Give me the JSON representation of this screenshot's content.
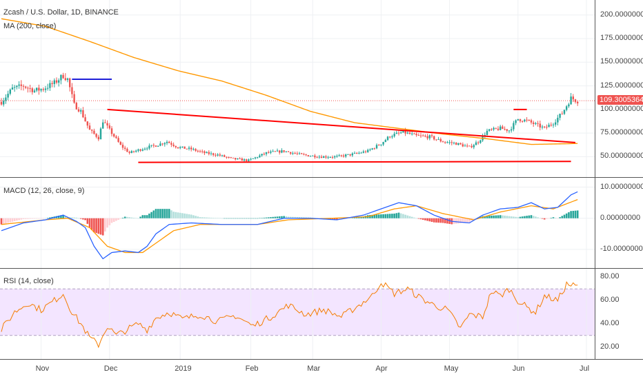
{
  "header": {
    "symbol_line": "Zcash / U.S. Dollar, 1D, BINANCE",
    "ma_label": "MA (200, close)",
    "macd_label": "MACD (12, 26, close, 9)",
    "rsi_label": "RSI (14, close)"
  },
  "colors": {
    "up": "#26a69a",
    "down": "#ef5350",
    "ma": "#ff9800",
    "macd": "#2962ff",
    "signal": "#ff9800",
    "rsi": "#f57c00",
    "rsi_band": "#f3e5ff",
    "trendline": "#ff0000",
    "blue_level": "#1e1ed8"
  },
  "price_tag": "109.30053640",
  "chart_data": [
    {
      "type": "candlestick",
      "pane": "price",
      "title": "Zcash / U.S. Dollar, 1D, BINANCE",
      "x_ticks": [
        "Nov",
        "Dec",
        "2019",
        "Feb",
        "Mar",
        "Apr",
        "May",
        "Jun",
        "Jul"
      ],
      "y_ticks": [
        "200.00000000",
        "175.00000000",
        "150.00000000",
        "125.00000000",
        "100.00000000",
        "75.00000000",
        "50.00000000"
      ],
      "ylim": [
        35,
        210
      ],
      "last_price": 109.3,
      "ma_label": "MA (200, close)",
      "close_keypoints": [
        {
          "day": 0,
          "value": 108
        },
        {
          "day": 5,
          "value": 122
        },
        {
          "day": 10,
          "value": 125
        },
        {
          "day": 15,
          "value": 120
        },
        {
          "day": 19,
          "value": 122
        },
        {
          "day": 24,
          "value": 128
        },
        {
          "day": 28,
          "value": 136
        },
        {
          "day": 30,
          "value": 132
        },
        {
          "day": 33,
          "value": 105
        },
        {
          "day": 36,
          "value": 98
        },
        {
          "day": 40,
          "value": 78
        },
        {
          "day": 44,
          "value": 70
        },
        {
          "day": 46,
          "value": 88
        },
        {
          "day": 50,
          "value": 75
        },
        {
          "day": 54,
          "value": 62
        },
        {
          "day": 58,
          "value": 54
        },
        {
          "day": 62,
          "value": 57
        },
        {
          "day": 66,
          "value": 60
        },
        {
          "day": 70,
          "value": 62
        },
        {
          "day": 75,
          "value": 66
        },
        {
          "day": 80,
          "value": 60
        },
        {
          "day": 86,
          "value": 58
        },
        {
          "day": 92,
          "value": 54
        },
        {
          "day": 98,
          "value": 52
        },
        {
          "day": 104,
          "value": 48
        },
        {
          "day": 112,
          "value": 46
        },
        {
          "day": 120,
          "value": 54
        },
        {
          "day": 128,
          "value": 56
        },
        {
          "day": 136,
          "value": 52
        },
        {
          "day": 145,
          "value": 50
        },
        {
          "day": 152,
          "value": 50
        },
        {
          "day": 160,
          "value": 53
        },
        {
          "day": 166,
          "value": 56
        },
        {
          "day": 172,
          "value": 64
        },
        {
          "day": 176,
          "value": 72
        },
        {
          "day": 182,
          "value": 76
        },
        {
          "day": 188,
          "value": 72
        },
        {
          "day": 194,
          "value": 71
        },
        {
          "day": 200,
          "value": 66
        },
        {
          "day": 206,
          "value": 64
        },
        {
          "day": 212,
          "value": 60
        },
        {
          "day": 216,
          "value": 66
        },
        {
          "day": 220,
          "value": 77
        },
        {
          "day": 226,
          "value": 80
        },
        {
          "day": 230,
          "value": 78
        },
        {
          "day": 234,
          "value": 90
        },
        {
          "day": 238,
          "value": 88
        },
        {
          "day": 242,
          "value": 84
        },
        {
          "day": 246,
          "value": 80
        },
        {
          "day": 250,
          "value": 86
        },
        {
          "day": 254,
          "value": 96
        },
        {
          "day": 258,
          "value": 112
        },
        {
          "day": 261,
          "value": 109
        }
      ],
      "ma200_keypoints": [
        {
          "day": 0,
          "value": 196
        },
        {
          "day": 20,
          "value": 188
        },
        {
          "day": 40,
          "value": 172
        },
        {
          "day": 60,
          "value": 155
        },
        {
          "day": 80,
          "value": 141
        },
        {
          "day": 100,
          "value": 130
        },
        {
          "day": 120,
          "value": 115
        },
        {
          "day": 140,
          "value": 98
        },
        {
          "day": 160,
          "value": 86
        },
        {
          "day": 180,
          "value": 80
        },
        {
          "day": 200,
          "value": 74
        },
        {
          "day": 220,
          "value": 69
        },
        {
          "day": 240,
          "value": 63
        },
        {
          "day": 261,
          "value": 64
        }
      ],
      "drawings": [
        {
          "kind": "blue_resistance",
          "from": {
            "day": 32,
            "value": 132
          },
          "to": {
            "day": 50,
            "value": 132
          }
        },
        {
          "kind": "red_descending_trendline",
          "from": {
            "day": 48,
            "value": 100
          },
          "to": {
            "day": 260,
            "value": 65
          }
        },
        {
          "kind": "red_support",
          "from": {
            "day": 62,
            "value": 44
          },
          "to": {
            "day": 258,
            "value": 45
          }
        },
        {
          "kind": "red_marker",
          "from": {
            "day": 232,
            "value": 100
          },
          "to": {
            "day": 238,
            "value": 100
          }
        }
      ]
    },
    {
      "type": "line",
      "pane": "macd",
      "title": "MACD (12, 26, close, 9)",
      "y_ticks": [
        "10.00000000",
        "0.00000000",
        "-10.00000000"
      ],
      "ylim": [
        -14,
        11
      ],
      "macd_keypoints": [
        {
          "day": 0,
          "value": -4
        },
        {
          "day": 10,
          "value": -1.5
        },
        {
          "day": 20,
          "value": -0.5
        },
        {
          "day": 28,
          "value": 1
        },
        {
          "day": 34,
          "value": -1
        },
        {
          "day": 38,
          "value": -3
        },
        {
          "day": 42,
          "value": -9
        },
        {
          "day": 46,
          "value": -13
        },
        {
          "day": 50,
          "value": -11
        },
        {
          "day": 56,
          "value": -10.5
        },
        {
          "day": 62,
          "value": -11
        },
        {
          "day": 66,
          "value": -9
        },
        {
          "day": 70,
          "value": -5
        },
        {
          "day": 76,
          "value": -2
        },
        {
          "day": 86,
          "value": -1.5
        },
        {
          "day": 100,
          "value": -2
        },
        {
          "day": 116,
          "value": -2
        },
        {
          "day": 128,
          "value": 0
        },
        {
          "day": 140,
          "value": 0
        },
        {
          "day": 152,
          "value": -0.5
        },
        {
          "day": 164,
          "value": 1
        },
        {
          "day": 172,
          "value": 3
        },
        {
          "day": 180,
          "value": 5
        },
        {
          "day": 188,
          "value": 4
        },
        {
          "day": 196,
          "value": 1
        },
        {
          "day": 204,
          "value": -1
        },
        {
          "day": 212,
          "value": -1.5
        },
        {
          "day": 218,
          "value": 1
        },
        {
          "day": 226,
          "value": 3
        },
        {
          "day": 234,
          "value": 3.5
        },
        {
          "day": 240,
          "value": 5
        },
        {
          "day": 246,
          "value": 3
        },
        {
          "day": 252,
          "value": 3.5
        },
        {
          "day": 258,
          "value": 7.5
        },
        {
          "day": 261,
          "value": 8.5
        }
      ],
      "signal_keypoints": [
        {
          "day": 0,
          "value": -2
        },
        {
          "day": 20,
          "value": -0.5
        },
        {
          "day": 30,
          "value": 0
        },
        {
          "day": 40,
          "value": -3
        },
        {
          "day": 48,
          "value": -9
        },
        {
          "day": 56,
          "value": -11
        },
        {
          "day": 64,
          "value": -11
        },
        {
          "day": 70,
          "value": -8
        },
        {
          "day": 78,
          "value": -4
        },
        {
          "day": 90,
          "value": -2
        },
        {
          "day": 116,
          "value": -2
        },
        {
          "day": 130,
          "value": -0.5
        },
        {
          "day": 150,
          "value": 0
        },
        {
          "day": 166,
          "value": 0.5
        },
        {
          "day": 178,
          "value": 3
        },
        {
          "day": 188,
          "value": 4
        },
        {
          "day": 200,
          "value": 1.5
        },
        {
          "day": 214,
          "value": -0.5
        },
        {
          "day": 226,
          "value": 2
        },
        {
          "day": 240,
          "value": 4
        },
        {
          "day": 250,
          "value": 3
        },
        {
          "day": 261,
          "value": 6
        }
      ]
    },
    {
      "type": "line",
      "pane": "rsi",
      "title": "RSI (14, close)",
      "y_ticks": [
        "80.00",
        "60.00",
        "40.00",
        "20.00"
      ],
      "ylim": [
        15,
        82
      ],
      "band": [
        30,
        70
      ],
      "rsi_keypoints": [
        {
          "day": 0,
          "value": 35
        },
        {
          "day": 6,
          "value": 50
        },
        {
          "day": 12,
          "value": 58
        },
        {
          "day": 18,
          "value": 52
        },
        {
          "day": 24,
          "value": 60
        },
        {
          "day": 28,
          "value": 66
        },
        {
          "day": 32,
          "value": 50
        },
        {
          "day": 36,
          "value": 40
        },
        {
          "day": 40,
          "value": 28
        },
        {
          "day": 44,
          "value": 22
        },
        {
          "day": 48,
          "value": 38
        },
        {
          "day": 52,
          "value": 30
        },
        {
          "day": 56,
          "value": 34
        },
        {
          "day": 62,
          "value": 40
        },
        {
          "day": 66,
          "value": 35
        },
        {
          "day": 70,
          "value": 45
        },
        {
          "day": 76,
          "value": 50
        },
        {
          "day": 82,
          "value": 44
        },
        {
          "day": 90,
          "value": 48
        },
        {
          "day": 98,
          "value": 42
        },
        {
          "day": 106,
          "value": 47
        },
        {
          "day": 114,
          "value": 38
        },
        {
          "day": 122,
          "value": 46
        },
        {
          "day": 130,
          "value": 56
        },
        {
          "day": 138,
          "value": 48
        },
        {
          "day": 146,
          "value": 52
        },
        {
          "day": 154,
          "value": 46
        },
        {
          "day": 162,
          "value": 56
        },
        {
          "day": 168,
          "value": 64
        },
        {
          "day": 172,
          "value": 76
        },
        {
          "day": 178,
          "value": 66
        },
        {
          "day": 184,
          "value": 70
        },
        {
          "day": 190,
          "value": 62
        },
        {
          "day": 196,
          "value": 56
        },
        {
          "day": 202,
          "value": 52
        },
        {
          "day": 208,
          "value": 36
        },
        {
          "day": 212,
          "value": 48
        },
        {
          "day": 218,
          "value": 46
        },
        {
          "day": 222,
          "value": 68
        },
        {
          "day": 226,
          "value": 64
        },
        {
          "day": 230,
          "value": 70
        },
        {
          "day": 234,
          "value": 60
        },
        {
          "day": 238,
          "value": 54
        },
        {
          "day": 242,
          "value": 50
        },
        {
          "day": 246,
          "value": 64
        },
        {
          "day": 252,
          "value": 60
        },
        {
          "day": 256,
          "value": 74
        },
        {
          "day": 261,
          "value": 72
        }
      ]
    }
  ]
}
